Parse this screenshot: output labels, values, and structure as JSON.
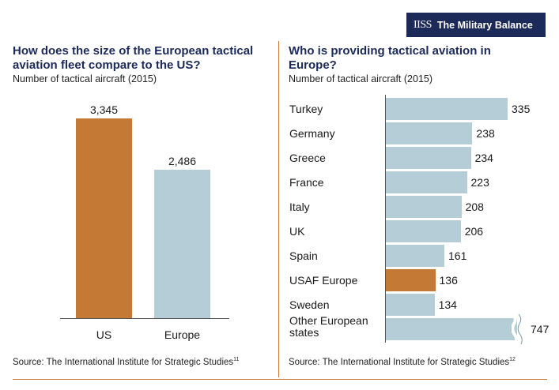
{
  "logo": {
    "mark": "IISS",
    "name": "The Military Balance"
  },
  "left": {
    "title": "How does the size of the European tactical aviation fleet compare to the US?",
    "subtitle": "Number of tactical aircraft (2015)",
    "source": "Source: The International Institute for Strategic Studies",
    "source_note": "11"
  },
  "right": {
    "title": "Who is providing tactical aviation in Europe?",
    "subtitle": "Number of tactical aircraft (2015)",
    "source": "Source: The International Institute for Strategic Studies",
    "source_note": "12"
  },
  "chart_data": [
    {
      "type": "bar",
      "title": "How does the size of the European tactical aviation fleet compare to the US?",
      "subtitle": "Number of tactical aircraft (2015)",
      "categories": [
        "US",
        "Europe"
      ],
      "values": [
        3345,
        2486
      ],
      "value_labels": [
        "3,345",
        "2,486"
      ],
      "colors": [
        "#c47a35",
        "#b5cdd6"
      ],
      "ylim": [
        0,
        3600
      ]
    },
    {
      "type": "bar",
      "orientation": "horizontal",
      "title": "Who is providing tactical aviation in Europe?",
      "subtitle": "Number of tactical aircraft (2015)",
      "categories": [
        "Turkey",
        "Germany",
        "Greece",
        "France",
        "Italy",
        "UK",
        "Spain",
        "USAF Europe",
        "Sweden",
        "Other European states"
      ],
      "values": [
        335,
        238,
        234,
        223,
        208,
        206,
        161,
        136,
        134,
        747
      ],
      "value_labels": [
        "335",
        "238",
        "234",
        "223",
        "208",
        "206",
        "161",
        "136",
        "134",
        "747"
      ],
      "highlight": "USAF Europe",
      "bar_color": "#b5cdd6",
      "highlight_color": "#c47a35",
      "axis_break_on": "Other European states"
    }
  ]
}
